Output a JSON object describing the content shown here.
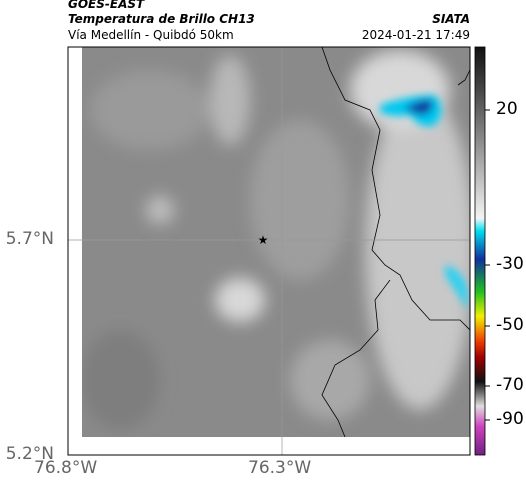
{
  "header": {
    "source": "GOES-EAST",
    "title": "Temperatura de Brillo CH13",
    "subtitle": "Vía Medellín - Quibdó 50km",
    "agency": "SIATA",
    "timestamp": "2024-01-21 17:49"
  },
  "map": {
    "lat_ticks": [
      "5.7°N",
      "5.2°N"
    ],
    "lon_ticks": [
      "76.8°W",
      "76.3°W"
    ]
  },
  "colorbar": {
    "ticks": [
      "20",
      "-30",
      "-50",
      "-70",
      "-90"
    ]
  }
}
